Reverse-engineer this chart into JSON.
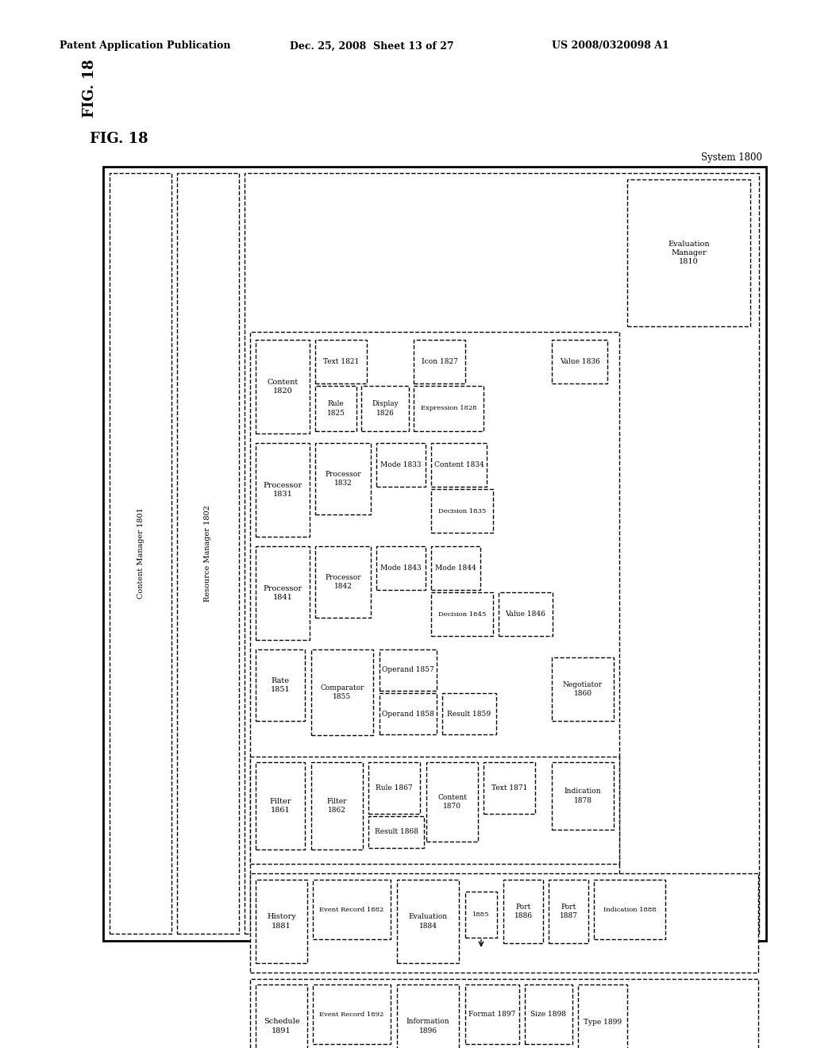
{
  "header_left": "Patent Application Publication",
  "header_mid": "Dec. 25, 2008  Sheet 13 of 27",
  "header_right": "US 2008/0320098 A1",
  "fig_label": "FIG. 18",
  "bg_color": "#ffffff"
}
